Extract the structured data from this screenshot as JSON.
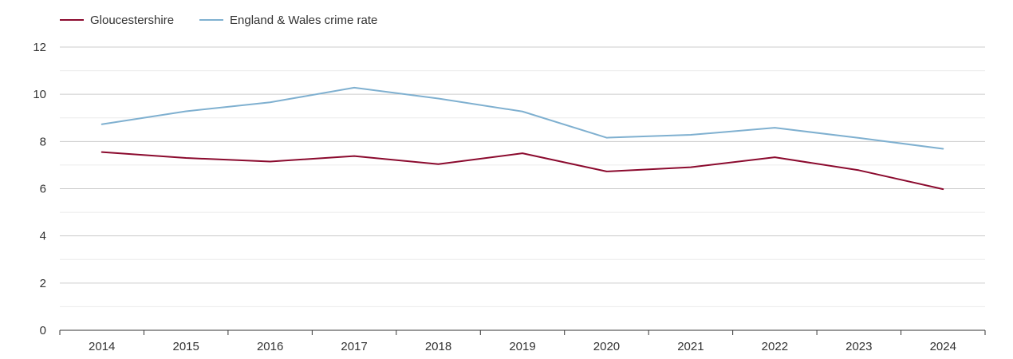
{
  "chart_data": {
    "type": "line",
    "title": "",
    "xlabel": "",
    "ylabel": "",
    "categories": [
      "2014",
      "2015",
      "2016",
      "2017",
      "2018",
      "2019",
      "2020",
      "2021",
      "2022",
      "2023",
      "2024"
    ],
    "ylim": [
      0,
      12
    ],
    "yticks": [
      0,
      2,
      4,
      6,
      8,
      10,
      12
    ],
    "grid": true,
    "legend_position": "top-left",
    "series": [
      {
        "name": "Gloucestershire",
        "color": "#8b0a2e",
        "values": [
          7.55,
          7.3,
          7.15,
          7.38,
          7.04,
          7.5,
          6.73,
          6.91,
          7.33,
          6.78,
          5.98
        ]
      },
      {
        "name": "England & Wales crime rate",
        "color": "#7fb0d0",
        "values": [
          8.73,
          9.28,
          9.66,
          10.28,
          9.82,
          9.27,
          8.16,
          8.28,
          8.58,
          8.15,
          7.69
        ]
      }
    ]
  }
}
